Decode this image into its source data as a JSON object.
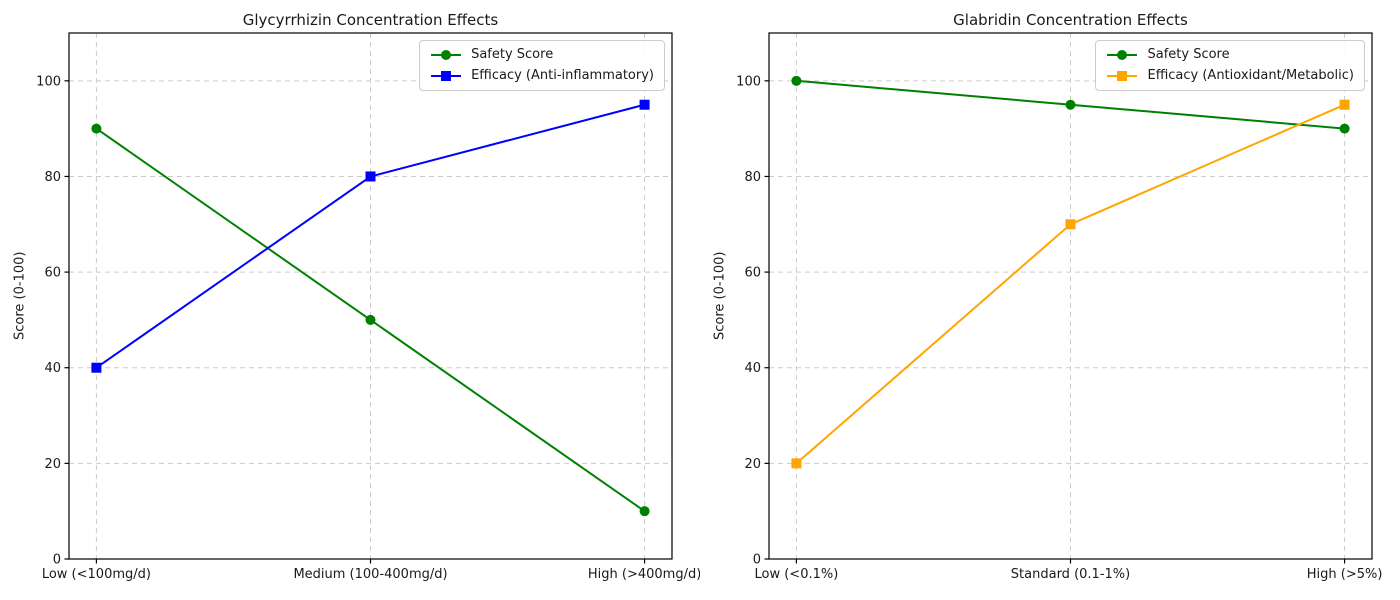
{
  "figure": {
    "background": "#ffffff",
    "grid_color": "#cccccc",
    "axis_color": "#000000",
    "text_color": "#1a1a1a"
  },
  "chart_data": [
    {
      "type": "line",
      "title": "Glycyrrhizin Concentration Effects",
      "xlabel": "",
      "ylabel": "Score (0-100)",
      "categories": [
        "Low (<100mg/d)",
        "Medium (100-400mg/d)",
        "High (>400mg/d)"
      ],
      "yticks": [
        0,
        20,
        40,
        60,
        80,
        100
      ],
      "ylim": [
        0,
        110
      ],
      "grid": true,
      "legend_position": "upper right",
      "series": [
        {
          "name": "Safety Score",
          "color": "#008000",
          "marker": "circle",
          "values": [
            90,
            50,
            10
          ]
        },
        {
          "name": "Efficacy (Anti-inflammatory)",
          "color": "#0000ff",
          "marker": "square",
          "values": [
            40,
            80,
            95
          ]
        }
      ]
    },
    {
      "type": "line",
      "title": "Glabridin Concentration Effects",
      "xlabel": "",
      "ylabel": "Score (0-100)",
      "categories": [
        "Low (<0.1%)",
        "Standard (0.1-1%)",
        "High (>5%)"
      ],
      "yticks": [
        0,
        20,
        40,
        60,
        80,
        100
      ],
      "ylim": [
        0,
        110
      ],
      "grid": true,
      "legend_position": "upper right",
      "series": [
        {
          "name": "Safety Score",
          "color": "#008000",
          "marker": "circle",
          "values": [
            100,
            95,
            90
          ]
        },
        {
          "name": "Efficacy (Antioxidant/Metabolic)",
          "color": "#ffa500",
          "marker": "square",
          "values": [
            20,
            70,
            95
          ]
        }
      ]
    }
  ]
}
